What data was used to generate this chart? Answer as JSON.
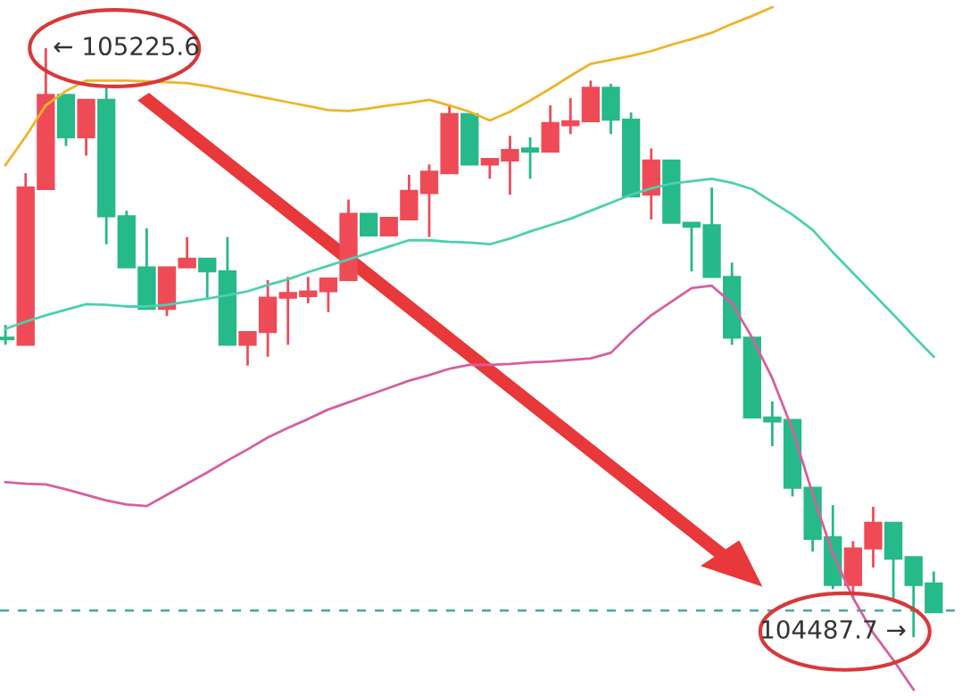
{
  "chart_data": {
    "type": "candlestick",
    "categories": [
      null,
      null,
      null,
      null,
      null,
      null,
      null,
      null,
      null,
      null,
      null,
      null,
      null,
      null,
      null,
      null,
      null,
      null,
      null,
      null,
      null,
      null,
      null,
      null,
      null,
      null,
      null,
      null,
      null,
      null,
      null,
      null,
      null,
      null,
      null,
      null,
      null,
      null,
      null,
      null,
      null,
      null,
      null,
      null,
      null,
      null,
      null
    ],
    "ohlc": [
      [
        104863,
        104879,
        104854,
        104861
      ],
      [
        104854,
        105069,
        104854,
        105051
      ],
      [
        105049,
        105225.6,
        105049,
        105167
      ],
      [
        105167,
        105167,
        105103,
        105114
      ],
      [
        105114,
        105161,
        105091,
        105161
      ],
      [
        105161,
        105176,
        104980,
        105015
      ],
      [
        105015,
        105022,
        104951,
        104951
      ],
      [
        104951,
        105000,
        104899,
        104899
      ],
      [
        104899,
        104951,
        104890,
        104951
      ],
      [
        104951,
        104989,
        104951,
        104962
      ],
      [
        104962,
        104962,
        104913,
        104946
      ],
      [
        104946,
        104989,
        104854,
        104854
      ],
      [
        104854,
        104870,
        104828,
        104870
      ],
      [
        104870,
        104935,
        104839,
        104913
      ],
      [
        104913,
        104939,
        104854,
        104919
      ],
      [
        104915,
        104939,
        104906,
        104921
      ],
      [
        104921,
        104937,
        104895,
        104937
      ],
      [
        104935,
        105036,
        104935,
        105018
      ],
      [
        105018,
        105018,
        104991,
        104991
      ],
      [
        104991,
        105013,
        104991,
        105013
      ],
      [
        105011,
        105067,
        105011,
        105047
      ],
      [
        105044,
        105080,
        104989,
        105071
      ],
      [
        105069,
        105154,
        105069,
        105143
      ],
      [
        105143,
        105143,
        105080,
        105080
      ],
      [
        105080,
        105087,
        105062,
        105087
      ],
      [
        105085,
        105116,
        105042,
        105098
      ],
      [
        105100,
        105114,
        105062,
        105096
      ],
      [
        105096,
        105154,
        105096,
        105132
      ],
      [
        105129,
        105163,
        105118,
        105134
      ],
      [
        105134,
        105185,
        105134,
        105176
      ],
      [
        105176,
        105181,
        105118,
        105136
      ],
      [
        105136,
        105145,
        105040,
        105040
      ],
      [
        105042,
        105100,
        105011,
        105085
      ],
      [
        105085,
        105085,
        105007,
        105007
      ],
      [
        105007,
        105007,
        104946,
        105002
      ],
      [
        105004,
        105051,
        104939,
        104939
      ],
      [
        104939,
        104957,
        104854,
        104863
      ],
      [
        104863,
        104863,
        104763,
        104763
      ],
      [
        104763,
        104783,
        104727,
        104758
      ],
      [
        104760,
        104760,
        104664,
        104675
      ],
      [
        104675,
        104675,
        104595,
        104611
      ],
      [
        104613,
        104653,
        104548,
        104553
      ],
      [
        104553,
        104608,
        104537,
        104599
      ],
      [
        104599,
        104651,
        104575,
        104631
      ],
      [
        104631,
        104631,
        104532,
        104586
      ],
      [
        104588,
        104588,
        104487.7,
        104553
      ],
      [
        104555,
        104570,
        104519,
        104519
      ]
    ],
    "colors": [
      "#26b98a",
      "#ef4b57",
      "#ef4b57",
      "#26b98a",
      "#ef4b57",
      "#26b98a",
      "#26b98a",
      "#26b98a",
      "#ef4b57",
      "#ef4b57",
      "#26b98a",
      "#26b98a",
      "#ef4b57",
      "#ef4b57",
      "#ef4b57",
      "#ef4b57",
      "#ef4b57",
      "#ef4b57",
      "#26b98a",
      "#ef4b57",
      "#ef4b57",
      "#ef4b57",
      "#ef4b57",
      "#26b98a",
      "#ef4b57",
      "#ef4b57",
      "#26b98a",
      "#ef4b57",
      "#ef4b57",
      "#ef4b57",
      "#26b98a",
      "#26b98a",
      "#ef4b57",
      "#26b98a",
      "#26b98a",
      "#26b98a",
      "#26b98a",
      "#26b98a",
      "#26b98a",
      "#26b98a",
      "#26b98a",
      "#26b98a",
      "#ef4b57",
      "#ef4b57",
      "#26b98a",
      "#26b98a",
      "#26b98a"
    ],
    "series": [
      {
        "type": "line",
        "color": "#f0b429",
        "values": [
          105079,
          105115,
          105154,
          105172,
          105185,
          105185,
          105185,
          105184,
          105183,
          105182,
          105178,
          105173,
          105168,
          105163,
          105158,
          105153,
          105148,
          105147,
          105150,
          105154,
          105157,
          105161,
          105154,
          105146,
          105135,
          105146,
          105160,
          105175,
          105191,
          105206,
          105211,
          105216,
          105222,
          105230,
          105237,
          105245,
          105256,
          105266,
          105277,
          null,
          null,
          null,
          null,
          null,
          null,
          null,
          null
        ]
      },
      {
        "type": "line",
        "color": "#4dd0b0",
        "values": [
          104874,
          104883,
          104891,
          104898,
          104905,
          104904,
          104902,
          104902,
          104904,
          104908,
          104912,
          104916,
          104921,
          104929,
          104936,
          104945,
          104953,
          104961,
          104969,
          104977,
          104985,
          104985,
          104983,
          104982,
          104980,
          104987,
          104996,
          105004,
          105012,
          105022,
          105032,
          105042,
          105050,
          105056,
          105059,
          105062,
          105057,
          105049,
          105033,
          105017,
          104998,
          104970,
          104944,
          104918,
          104892,
          104865,
          104839
        ]
      },
      {
        "type": "line",
        "color": "#d65fa0",
        "values": [
          104682,
          104680,
          104679,
          104673,
          104666,
          104659,
          104654,
          104652,
          104666,
          104680,
          104694,
          104709,
          104723,
          104738,
          104750,
          104761,
          104773,
          104782,
          104791,
          104800,
          104809,
          104816,
          104824,
          104829,
          104829,
          104830,
          104832,
          104833,
          104835,
          104837,
          104844,
          104869,
          104891,
          104908,
          104925,
          104928,
          104906,
          104863,
          104812,
          104748,
          104667,
          104592,
          104537,
          104493,
          104459,
          104422,
          null
        ]
      }
    ],
    "ylim": [
      104414,
      105286
    ],
    "ref_lines": [
      {
        "axis": "y",
        "value": 104521,
        "color": "#4aa8a0",
        "line_style": "dashed"
      }
    ],
    "annotations": [
      "← 105225.6",
      "104487.7 →"
    ],
    "tick_labels": false,
    "grid": false,
    "legend": false
  }
}
